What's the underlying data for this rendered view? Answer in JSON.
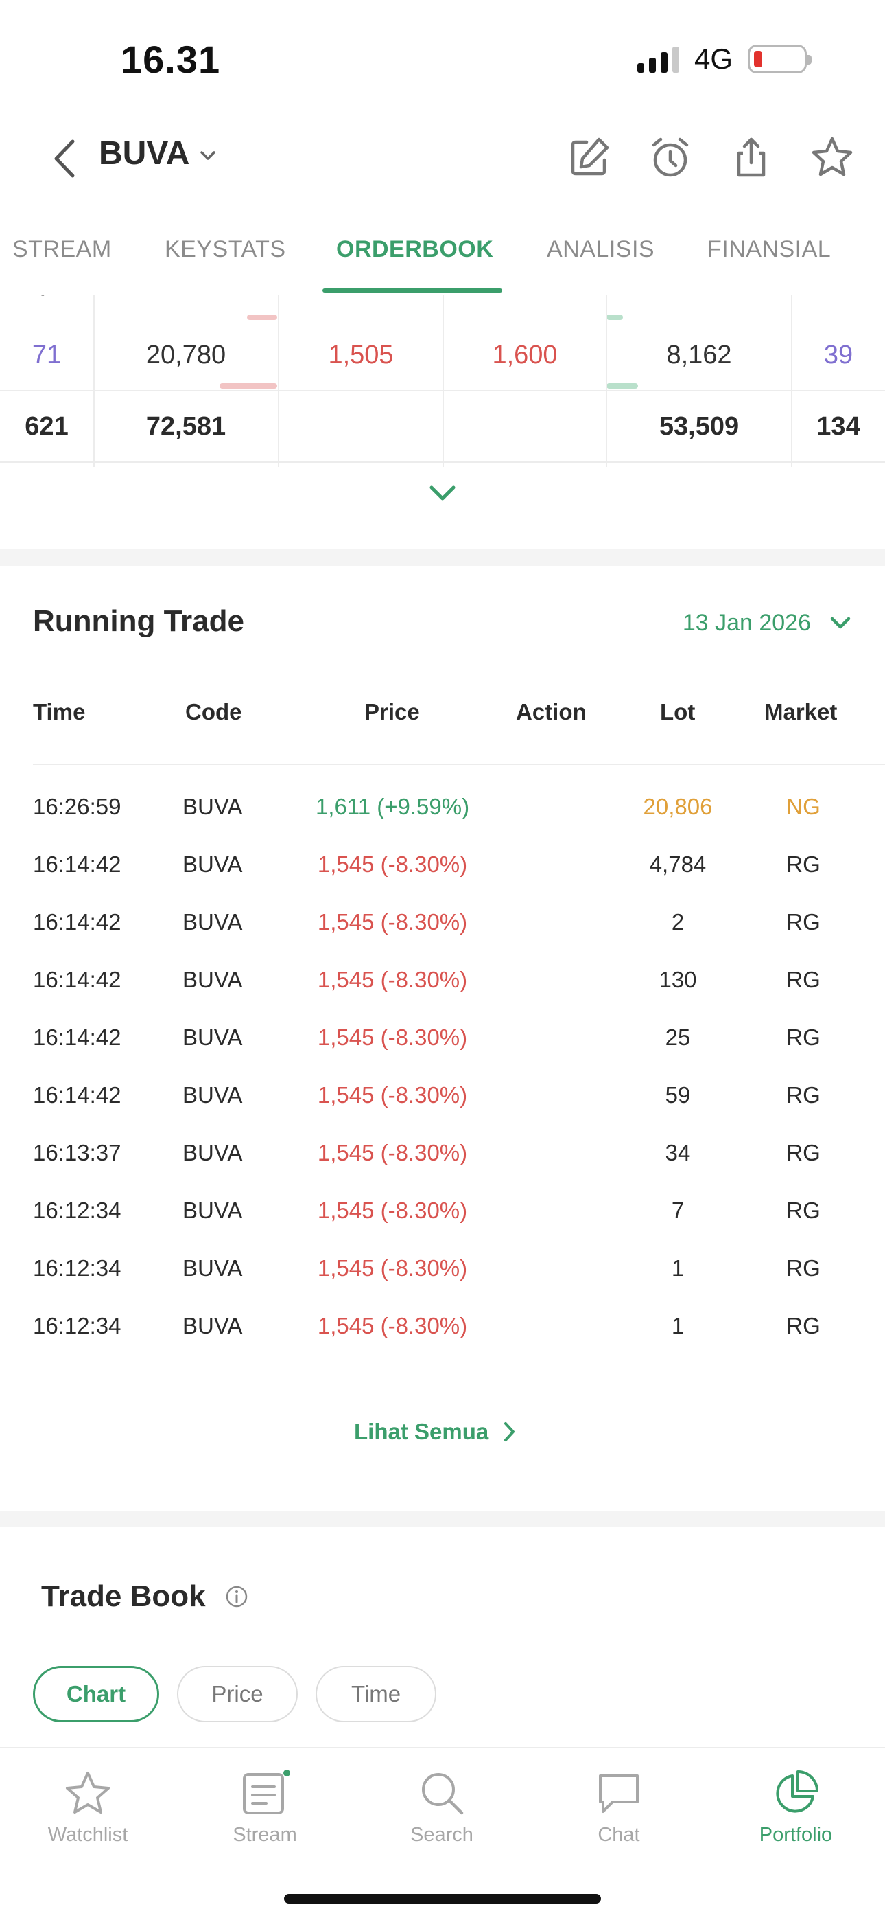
{
  "status": {
    "time": "16.31",
    "network": "4G"
  },
  "header": {
    "ticker": "BUVA"
  },
  "tabs": [
    "STREAM",
    "KEYSTATS",
    "ORDERBOOK",
    "ANALISIS",
    "FINANSIAL"
  ],
  "orderbook": {
    "row": {
      "bid_freq": "71",
      "bid_lot": "20,780",
      "bid_price": "1,505",
      "offer_price": "1,600",
      "offer_lot": "8,162",
      "offer_freq": "39"
    },
    "total": {
      "bid_freq": "621",
      "bid_lot": "72,581",
      "offer_lot": "53,509",
      "offer_freq": "134"
    }
  },
  "running_trade": {
    "title": "Running Trade",
    "date": "13 Jan 2026",
    "columns": [
      "Time",
      "Code",
      "Price",
      "Action",
      "Lot",
      "Market"
    ],
    "rows": [
      {
        "time": "16:26:59",
        "code": "BUVA",
        "price": "1,611 (+9.59%)",
        "lot": "20,806",
        "market": "NG"
      },
      {
        "time": "16:14:42",
        "code": "BUVA",
        "price": "1,545 (-8.30%)",
        "lot": "4,784",
        "market": "RG"
      },
      {
        "time": "16:14:42",
        "code": "BUVA",
        "price": "1,545 (-8.30%)",
        "lot": "2",
        "market": "RG"
      },
      {
        "time": "16:14:42",
        "code": "BUVA",
        "price": "1,545 (-8.30%)",
        "lot": "130",
        "market": "RG"
      },
      {
        "time": "16:14:42",
        "code": "BUVA",
        "price": "1,545 (-8.30%)",
        "lot": "25",
        "market": "RG"
      },
      {
        "time": "16:14:42",
        "code": "BUVA",
        "price": "1,545 (-8.30%)",
        "lot": "59",
        "market": "RG"
      },
      {
        "time": "16:13:37",
        "code": "BUVA",
        "price": "1,545 (-8.30%)",
        "lot": "34",
        "market": "RG"
      },
      {
        "time": "16:12:34",
        "code": "BUVA",
        "price": "1,545 (-8.30%)",
        "lot": "7",
        "market": "RG"
      },
      {
        "time": "16:12:34",
        "code": "BUVA",
        "price": "1,545 (-8.30%)",
        "lot": "1",
        "market": "RG"
      },
      {
        "time": "16:12:34",
        "code": "BUVA",
        "price": "1,545 (-8.30%)",
        "lot": "1",
        "market": "RG"
      }
    ],
    "see_all": "Lihat Semua"
  },
  "trade_book": {
    "title": "Trade Book",
    "chips": [
      "Chart",
      "Price",
      "Time"
    ]
  },
  "bottom_nav": [
    "Watchlist",
    "Stream",
    "Search",
    "Chat",
    "Portfolio"
  ],
  "colors": {
    "accent": "#3b9e6b",
    "down": "#d9534f",
    "freq": "#7f6fd0",
    "nego": "#e0a03a"
  }
}
